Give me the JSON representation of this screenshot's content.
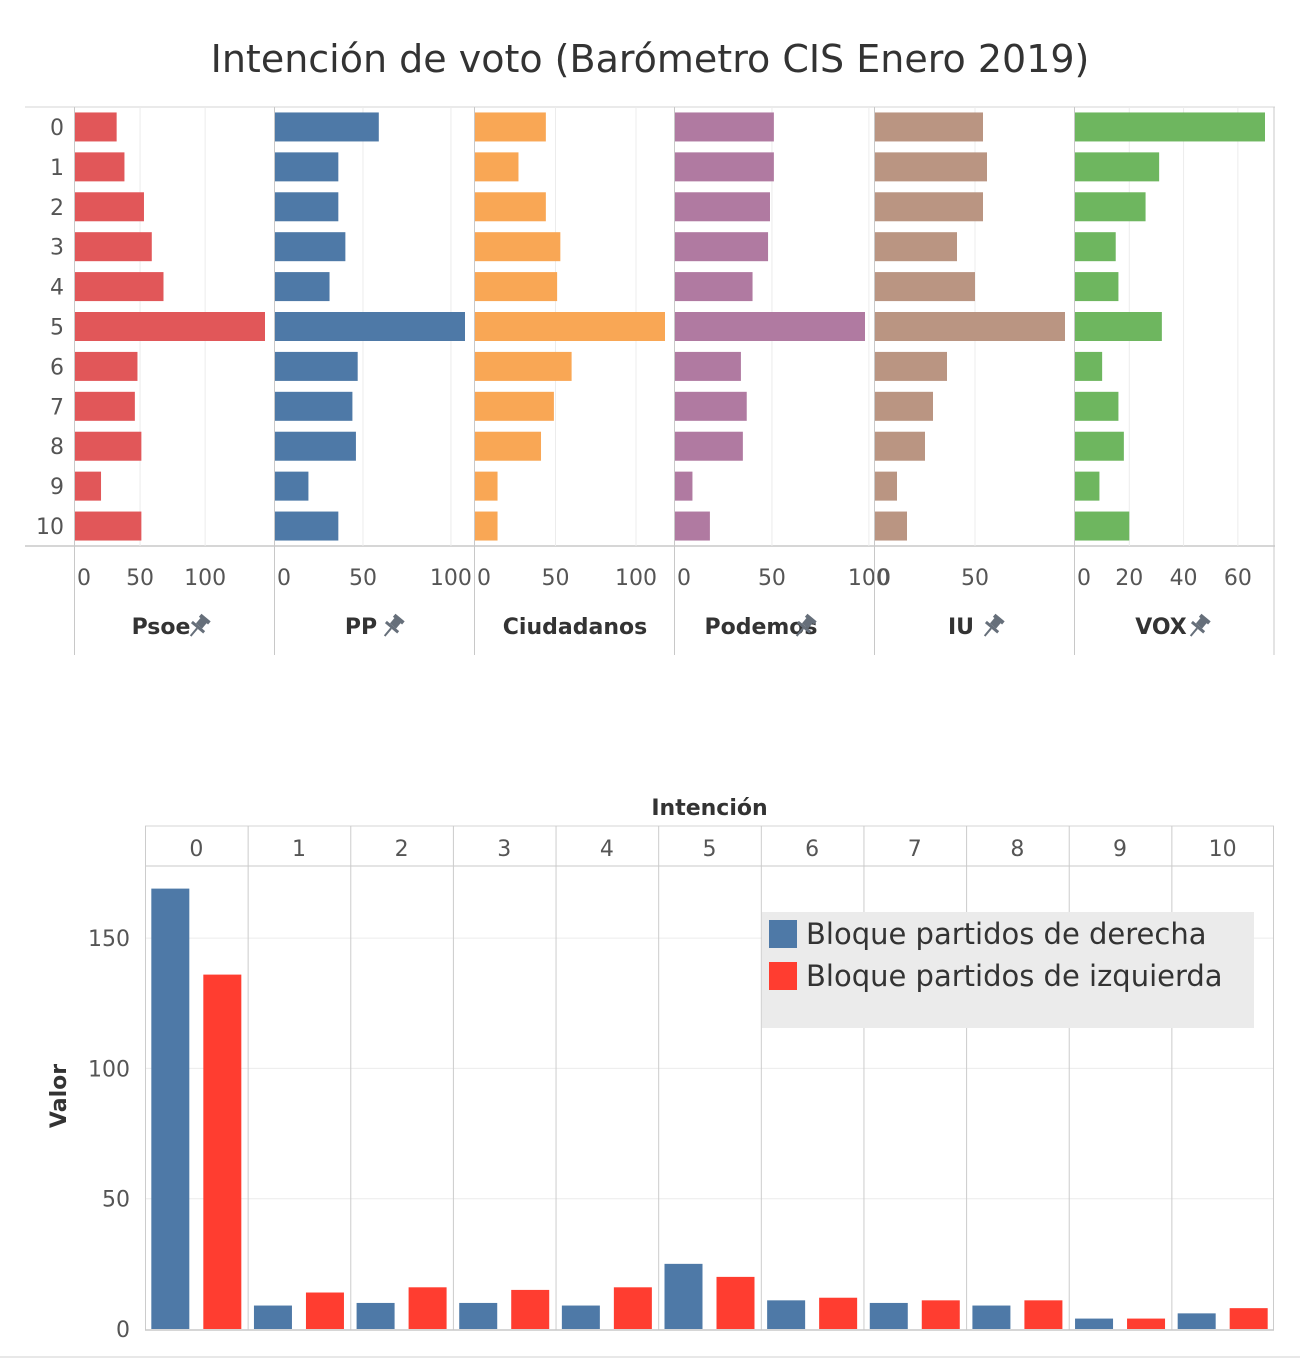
{
  "page_title": "Intención de voto (Barómetro CIS Enero 2019)",
  "chart_data": [
    {
      "type": "bar",
      "orientation": "horizontal",
      "categories": [
        "0",
        "1",
        "2",
        "3",
        "4",
        "5",
        "6",
        "7",
        "8",
        "9",
        "10"
      ],
      "panels": [
        {
          "name": "Psoe",
          "pinned": true,
          "color": "#e15759",
          "ticks": [
            0,
            50,
            100
          ],
          "xlim": [
            0,
            146
          ],
          "values": [
            32,
            38,
            53,
            59,
            68,
            146,
            48,
            46,
            51,
            20,
            51
          ]
        },
        {
          "name": "PP",
          "pinned": true,
          "color": "#4e79a7",
          "ticks": [
            0,
            50,
            100
          ],
          "xlim": [
            0,
            108
          ],
          "values": [
            59,
            36,
            36,
            40,
            31,
            108,
            47,
            44,
            46,
            19,
            36
          ]
        },
        {
          "name": "Ciudadanos",
          "pinned": false,
          "color": "#f9a755",
          "ticks": [
            0,
            50,
            100
          ],
          "xlim": [
            0,
            118
          ],
          "values": [
            44,
            27,
            44,
            53,
            51,
            118,
            60,
            49,
            41,
            14,
            14
          ]
        },
        {
          "name": "Podemos",
          "pinned": true,
          "color": "#b07aa1",
          "ticks": [
            0,
            50,
            100
          ],
          "xlim": [
            0,
            98
          ],
          "values": [
            51,
            51,
            49,
            48,
            40,
            98,
            34,
            37,
            35,
            9,
            18
          ]
        },
        {
          "name": "IU",
          "pinned": true,
          "color": "#ba9582",
          "ticks": [
            0,
            50
          ],
          "xlim": [
            0,
            95
          ],
          "values": [
            54,
            56,
            54,
            41,
            50,
            95,
            36,
            29,
            25,
            11,
            16
          ]
        },
        {
          "name": "VOX",
          "pinned": true,
          "color": "#6eb65f",
          "ticks": [
            0,
            20,
            40,
            60
          ],
          "xlim": [
            0,
            70
          ],
          "values": [
            70,
            31,
            26,
            15,
            16,
            32,
            10,
            16,
            18,
            9,
            20
          ]
        }
      ]
    },
    {
      "type": "bar",
      "orientation": "vertical",
      "xlabel": "Intención",
      "ylabel": "Valor",
      "categories": [
        "0",
        "1",
        "2",
        "3",
        "4",
        "5",
        "6",
        "7",
        "8",
        "9",
        "10"
      ],
      "ylim": [
        0,
        170
      ],
      "yticks": [
        0,
        50,
        100,
        150
      ],
      "legend_position": "top-right",
      "series": [
        {
          "name": "Bloque partidos de derecha",
          "color": "#4e79a7",
          "values": [
            169,
            9,
            10,
            10,
            9,
            25,
            11,
            10,
            9,
            4,
            6
          ]
        },
        {
          "name": "Bloque partidos de izquierda",
          "color": "#ff3d30",
          "values": [
            136,
            14,
            16,
            15,
            16,
            20,
            12,
            11,
            11,
            4,
            8
          ]
        }
      ]
    }
  ]
}
